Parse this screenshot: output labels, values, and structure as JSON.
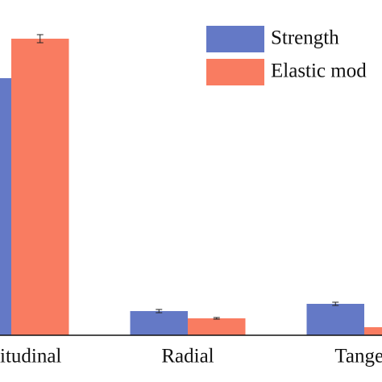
{
  "chart_data": {
    "type": "bar",
    "categories": [
      "itudinal",
      "Radial",
      "Tangen"
    ],
    "series": [
      {
        "name": "Strength",
        "color": "#6479c6",
        "values": [
          319,
          30,
          39
        ],
        "errors": [
          0,
          2,
          2
        ]
      },
      {
        "name": "Elastic mod",
        "color": "#f97c61",
        "values": [
          368,
          21,
          10
        ],
        "errors": [
          5,
          1,
          0
        ]
      }
    ],
    "ylim": [
      0,
      416
    ]
  }
}
